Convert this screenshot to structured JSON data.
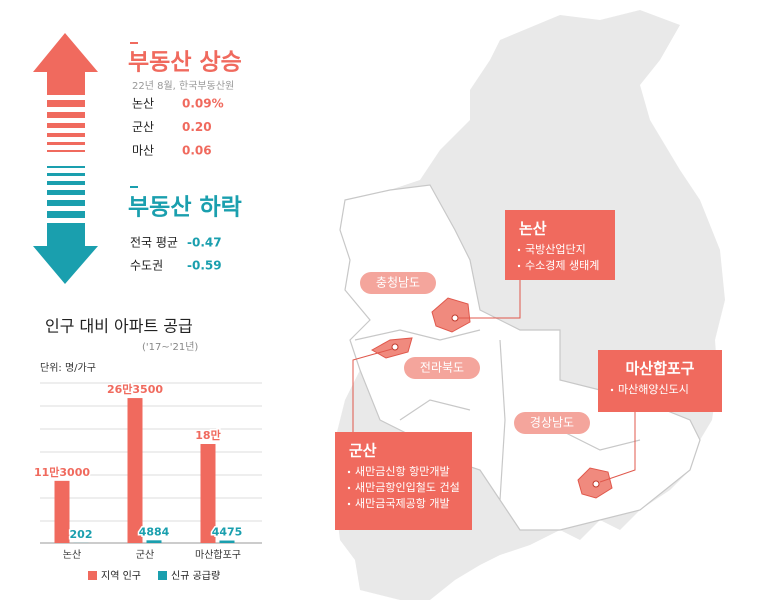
{
  "rise": {
    "title": "부동산 상승",
    "note": "22년 8월, 한국부동산원",
    "rows": [
      {
        "region": "논산",
        "value": "0.09%"
      },
      {
        "region": "군산",
        "value": "0.20"
      },
      {
        "region": "마산",
        "value": "0.06"
      }
    ]
  },
  "fall": {
    "title": "부동산 하락",
    "rows": [
      {
        "region": "전국 평균",
        "value": "-0.47"
      },
      {
        "region": "수도권",
        "value": "-0.59"
      }
    ]
  },
  "chart_data": {
    "type": "bar",
    "title": "인구 대비 아파트 공급",
    "subtitle": "('17~'21년)",
    "unit": "단위: 명/가구",
    "categories": [
      "논산",
      "군산",
      "마산합포구"
    ],
    "series": [
      {
        "name": "지역 인구",
        "color": "#f06a5e",
        "values": [
          113000,
          263500,
          180000
        ],
        "value_labels": [
          "11만3000",
          "26만3500",
          "18만"
        ]
      },
      {
        "name": "신규 공급량",
        "color": "#1a9fae",
        "values": [
          202,
          4884,
          4475
        ]
      }
    ],
    "ylim": [
      0,
      300000
    ]
  },
  "map": {
    "regions": [
      "충청남도",
      "전라북도",
      "경상남도"
    ],
    "callouts": [
      {
        "title": "논산",
        "items": [
          "국방산업단지",
          "수소경제 생태계"
        ]
      },
      {
        "title": "마산합포구",
        "items": [
          "마산해양신도시"
        ]
      },
      {
        "title": "군산",
        "items": [
          "새만금신항 항만개발",
          "새만금항인입철도 건설",
          "새만금국제공항 개발"
        ]
      }
    ]
  }
}
